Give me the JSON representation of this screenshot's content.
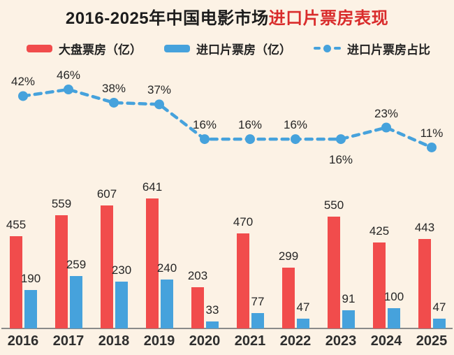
{
  "title": {
    "black_part": "2016-2025年中国电影市场",
    "red_part": "进口片票房表现"
  },
  "legend": {
    "total_label": "大盘票房（亿）",
    "import_label": "进口片票房（亿）",
    "share_label": "进口片票房占比"
  },
  "colors": {
    "background": "#fcf2e5",
    "total_bar": "#f14c4c",
    "import_bar": "#46a2dc",
    "trend_line": "#46a2dc",
    "title_red": "#d92c2c",
    "text": "#262626",
    "axis": "#8a8a8a"
  },
  "chart_data": {
    "type": "bar",
    "subtype": "grouped bars with overlaid dashed percentage line",
    "categories": [
      "2016",
      "2017",
      "2018",
      "2019",
      "2020",
      "2021",
      "2022",
      "2023",
      "2024",
      "2025"
    ],
    "series": [
      {
        "name": "大盘票房（亿）",
        "type": "bar",
        "color": "#f14c4c",
        "values": [
          455,
          559,
          607,
          641,
          203,
          470,
          299,
          550,
          425,
          443
        ]
      },
      {
        "name": "进口片票房（亿）",
        "type": "bar",
        "color": "#46a2dc",
        "values": [
          190,
          259,
          230,
          240,
          33,
          77,
          47,
          91,
          100,
          47
        ]
      },
      {
        "name": "进口片票房占比",
        "type": "line",
        "style": "dashed",
        "color": "#46a2dc",
        "unit": "%",
        "values": [
          42,
          46,
          38,
          37,
          16,
          16,
          16,
          16,
          23,
          11
        ],
        "label_position": [
          "above",
          "above",
          "above",
          "above",
          "above",
          "above",
          "above",
          "below",
          "above",
          "above"
        ]
      }
    ],
    "title": "2016-2025年中国电影市场进口片票房表现",
    "xlabel": "",
    "ylabel": "",
    "value_labels": true,
    "grid": false,
    "legend_position": "top"
  }
}
